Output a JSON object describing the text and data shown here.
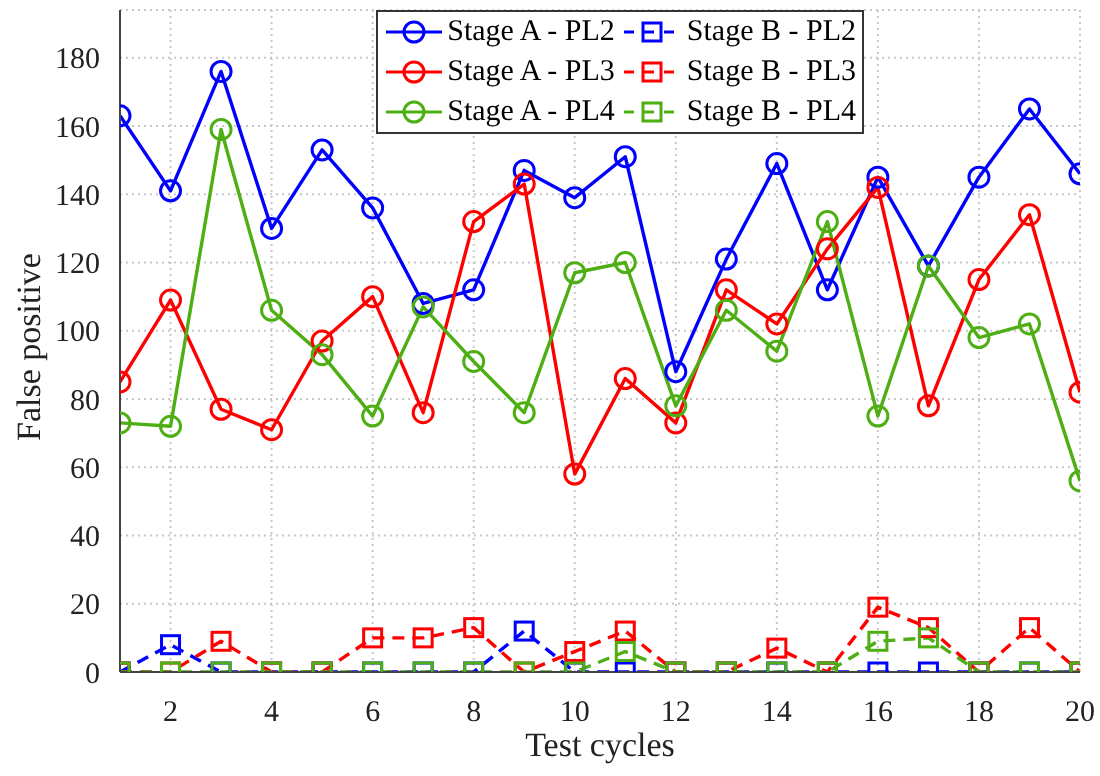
{
  "chart_data": {
    "type": "line",
    "xlabel": "Test cycles",
    "ylabel": "False positive",
    "x": [
      1,
      2,
      3,
      4,
      5,
      6,
      7,
      8,
      9,
      10,
      11,
      12,
      13,
      14,
      15,
      16,
      17,
      18,
      19,
      20
    ],
    "xlim": [
      1,
      20
    ],
    "xticks": [
      2,
      4,
      6,
      8,
      10,
      12,
      14,
      16,
      18,
      20
    ],
    "ylim": [
      0,
      194
    ],
    "yticks": [
      0,
      20,
      40,
      60,
      80,
      100,
      120,
      140,
      160,
      180
    ],
    "grid": true,
    "legend": "top right",
    "series": [
      {
        "name": "Stage A - PL2",
        "color": "#0000ff",
        "marker": "circle",
        "line_style": "solid",
        "values": [
          163,
          141,
          176,
          130,
          153,
          136,
          108,
          112,
          147,
          139,
          151,
          88,
          121,
          149,
          112,
          145,
          119,
          145,
          165,
          146
        ]
      },
      {
        "name": "Stage B - PL2",
        "color": "#0000ff",
        "marker": "square",
        "line_style": "dashed",
        "values": [
          0,
          8,
          0,
          0,
          0,
          0,
          0,
          0,
          12,
          0,
          0,
          0,
          0,
          0,
          0,
          0,
          0,
          0,
          0,
          0
        ]
      },
      {
        "name": "Stage A - PL3",
        "color": "#ff0000",
        "marker": "circle",
        "line_style": "solid",
        "values": [
          85,
          109,
          77,
          71,
          97,
          110,
          76,
          132,
          143,
          58,
          86,
          73,
          112,
          102,
          124,
          142,
          78,
          115,
          134,
          82
        ]
      },
      {
        "name": "Stage B - PL3",
        "color": "#ff0000",
        "marker": "square",
        "line_style": "dashed",
        "values": [
          0,
          0,
          9,
          0,
          0,
          10,
          10,
          13,
          0,
          6,
          12,
          0,
          0,
          7,
          0,
          19,
          13,
          0,
          13,
          0
        ]
      },
      {
        "name": "Stage A - PL4",
        "color": "#4daf13",
        "marker": "circle",
        "line_style": "solid",
        "values": [
          73,
          72,
          159,
          106,
          93,
          75,
          107,
          91,
          76,
          117,
          120,
          78,
          106,
          94,
          132,
          75,
          119,
          98,
          102,
          56
        ]
      },
      {
        "name": "Stage B - PL4",
        "color": "#4daf13",
        "marker": "square",
        "line_style": "dashed",
        "values": [
          0,
          0,
          0,
          0,
          0,
          0,
          0,
          0,
          0,
          0,
          6,
          0,
          0,
          0,
          0,
          9,
          10,
          0,
          0,
          0
        ]
      }
    ]
  }
}
